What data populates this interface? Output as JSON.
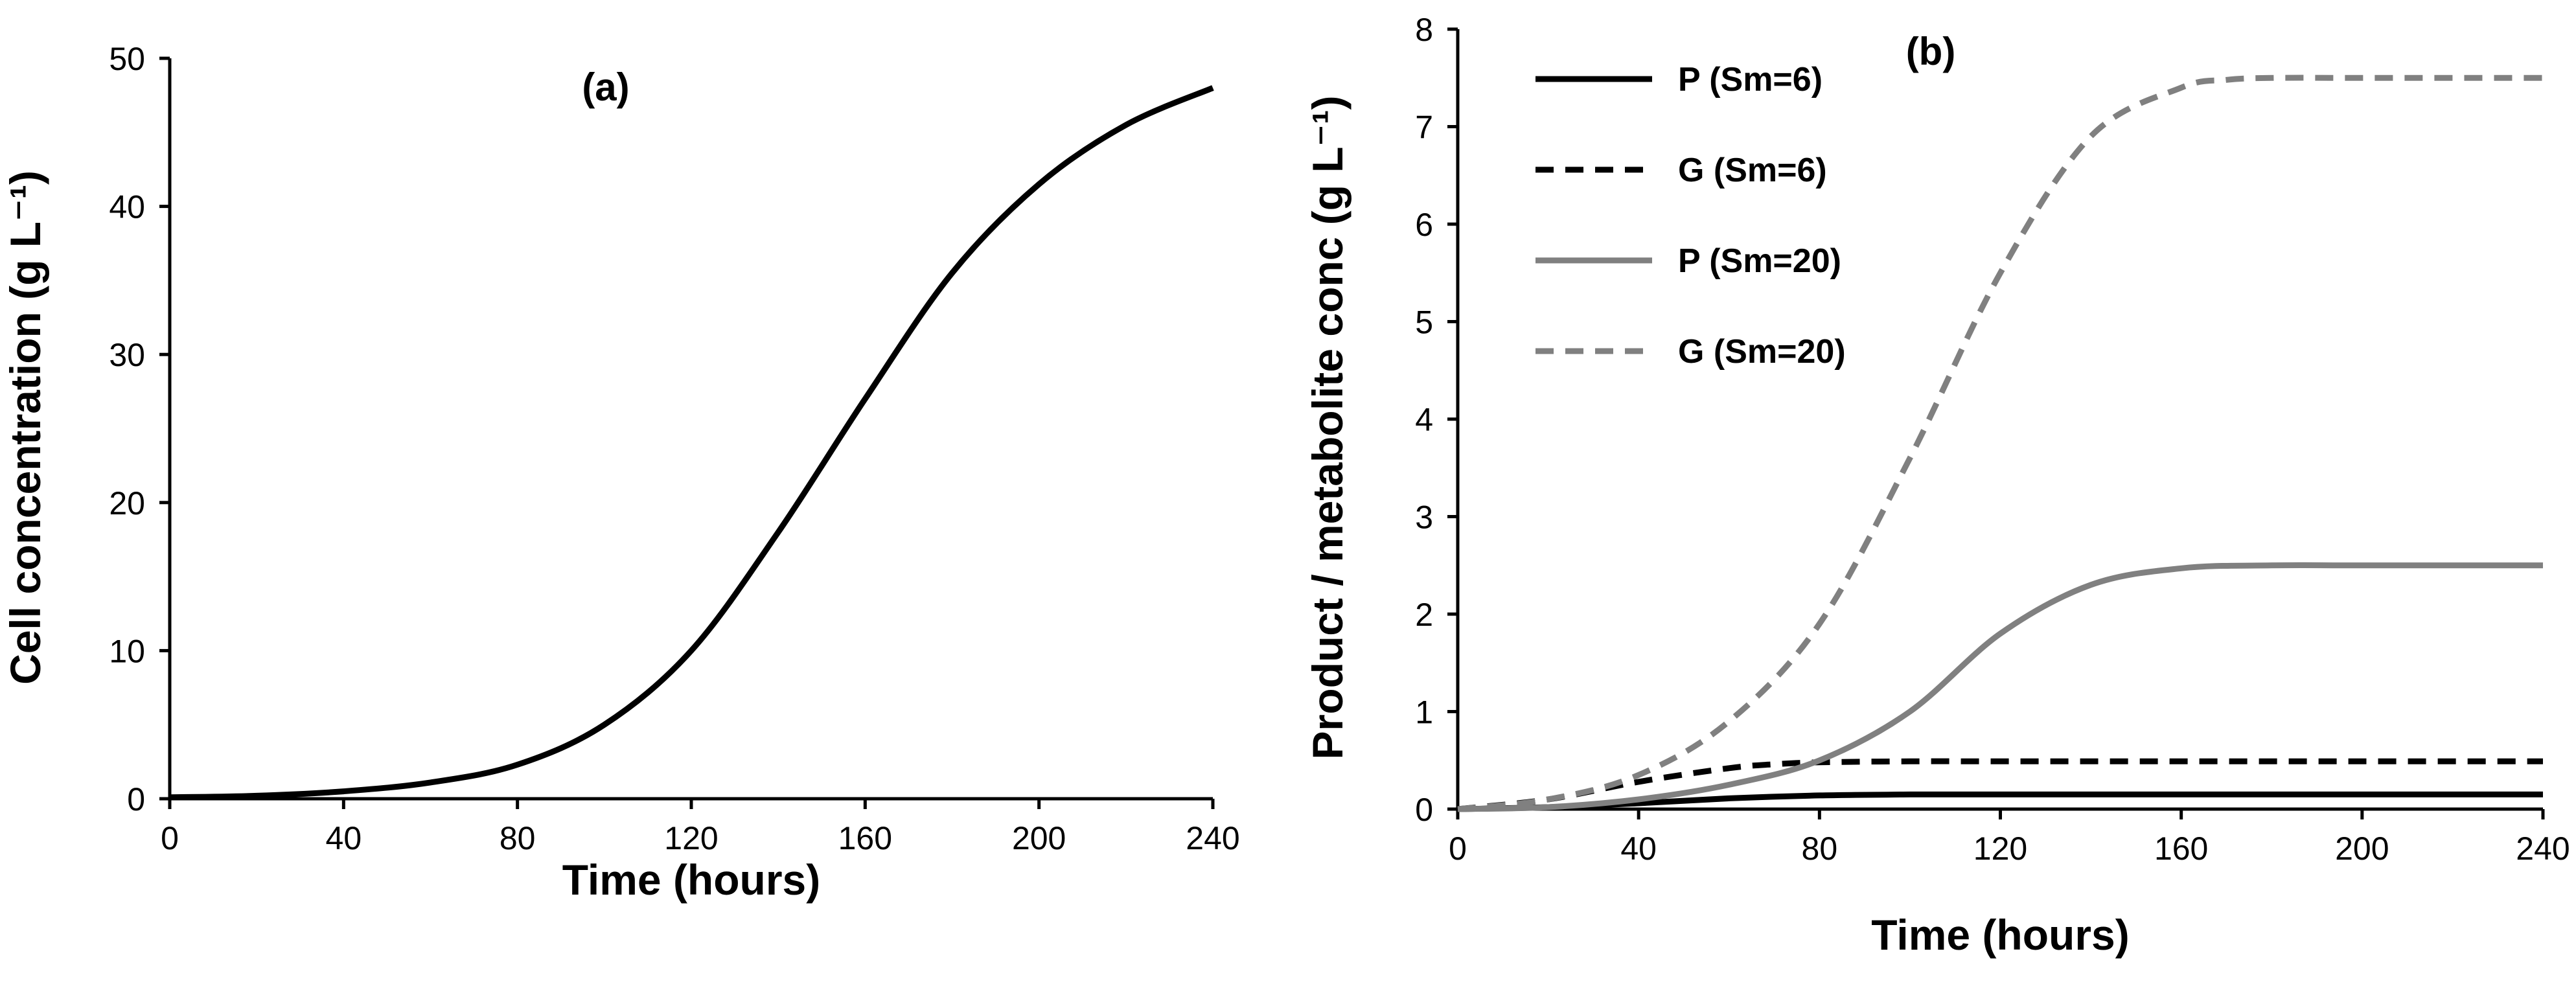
{
  "chart_data": [
    {
      "type": "line",
      "panel_label": "(a)",
      "xlabel": "Time (hours)",
      "ylabel": "Cell concentration (g L⁻¹)",
      "xlim": [
        0,
        240
      ],
      "ylim": [
        0,
        50
      ],
      "xticks": [
        0,
        40,
        80,
        120,
        160,
        200,
        240
      ],
      "yticks": [
        0,
        10,
        20,
        30,
        40,
        50
      ],
      "grid": false,
      "series": [
        {
          "color": "#000000",
          "dash": "solid",
          "x": [
            0,
            20,
            40,
            60,
            80,
            100,
            120,
            140,
            160,
            180,
            200,
            220,
            240
          ],
          "y": [
            0.1,
            0.2,
            0.5,
            1.1,
            2.3,
            5.0,
            10.0,
            18.0,
            27.0,
            35.5,
            41.5,
            45.5,
            48.0
          ]
        }
      ]
    },
    {
      "type": "line",
      "panel_label": "(b)",
      "xlabel": "Time (hours)",
      "ylabel": "Product  / metabolite conc (g L⁻¹)",
      "xlim": [
        0,
        240
      ],
      "ylim": [
        0,
        8
      ],
      "xticks": [
        0,
        40,
        80,
        120,
        160,
        200,
        240
      ],
      "yticks": [
        0,
        1,
        2,
        3,
        4,
        5,
        6,
        7,
        8
      ],
      "grid": false,
      "legend_position": "top-left",
      "series": [
        {
          "name": "P (Sm=6)",
          "color": "#000000",
          "dash": "solid",
          "x": [
            0,
            20,
            40,
            60,
            80,
            100,
            120,
            140,
            160,
            200,
            240
          ],
          "y": [
            0,
            0.02,
            0.06,
            0.11,
            0.14,
            0.15,
            0.15,
            0.15,
            0.15,
            0.15,
            0.15
          ]
        },
        {
          "name": "G (Sm=6)",
          "color": "#000000",
          "dash": "dashed",
          "x": [
            0,
            20,
            40,
            60,
            70,
            80,
            100,
            120,
            160,
            200,
            240
          ],
          "y": [
            0,
            0.1,
            0.28,
            0.42,
            0.46,
            0.48,
            0.49,
            0.49,
            0.49,
            0.49,
            0.49
          ]
        },
        {
          "name": "P (Sm=20)",
          "color": "#808080",
          "dash": "solid",
          "x": [
            0,
            20,
            40,
            60,
            80,
            100,
            120,
            140,
            160,
            180,
            200,
            240
          ],
          "y": [
            0,
            0.02,
            0.1,
            0.25,
            0.5,
            1.0,
            1.8,
            2.3,
            2.47,
            2.5,
            2.5,
            2.5
          ]
        },
        {
          "name": "G (Sm=20)",
          "color": "#808080",
          "dash": "dashed",
          "x": [
            0,
            20,
            40,
            60,
            80,
            100,
            120,
            140,
            160,
            170,
            180,
            200,
            240
          ],
          "y": [
            0,
            0.1,
            0.35,
            0.9,
            1.9,
            3.6,
            5.5,
            6.9,
            7.4,
            7.48,
            7.5,
            7.5,
            7.5
          ]
        }
      ]
    }
  ]
}
